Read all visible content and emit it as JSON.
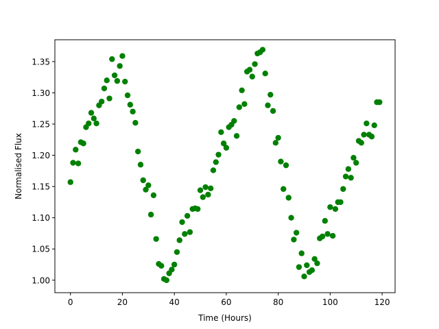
{
  "chart_data": {
    "type": "scatter",
    "title": "",
    "xlabel": "Time (Hours)",
    "ylabel": "Normalised Flux",
    "xlim": [
      -6,
      125
    ],
    "ylim": [
      0.98,
      1.385
    ],
    "x_ticks": [
      0,
      20,
      40,
      60,
      80,
      100,
      120
    ],
    "y_ticks": [
      1.0,
      1.05,
      1.1,
      1.15,
      1.2,
      1.25,
      1.3,
      1.35
    ],
    "grid": false,
    "legend": "none",
    "marker_color": "#008000",
    "series": [
      {
        "x": [
          0,
          1,
          2,
          3,
          4,
          5,
          6,
          7,
          8,
          9,
          10,
          11,
          12,
          13,
          14,
          15,
          16,
          17,
          18,
          19,
          20,
          21,
          22,
          23,
          24,
          25,
          26,
          27,
          28,
          29,
          30,
          31,
          32,
          33,
          34,
          35,
          36,
          37,
          38,
          39,
          40,
          41,
          42,
          43,
          44,
          45,
          46,
          47,
          48,
          49,
          50,
          51,
          52,
          53,
          54,
          55,
          56,
          57,
          58,
          59,
          60,
          61,
          62,
          63,
          64,
          65,
          66,
          67,
          68,
          69,
          70,
          71,
          72,
          73,
          74,
          75,
          76,
          77,
          78,
          79,
          80,
          81,
          82,
          83,
          84,
          85,
          86,
          87,
          88,
          89,
          90,
          91,
          92,
          93,
          94,
          95,
          96,
          97,
          98,
          99,
          100,
          101,
          102,
          103,
          104,
          105,
          106,
          107,
          108,
          109,
          110,
          111,
          112,
          113,
          114,
          115,
          116,
          117,
          118,
          119
        ],
        "y": [
          1.157,
          1.188,
          1.209,
          1.187,
          1.221,
          1.219,
          1.245,
          1.251,
          1.268,
          1.259,
          1.251,
          1.28,
          1.286,
          1.307,
          1.32,
          1.291,
          1.354,
          1.328,
          1.319,
          1.343,
          1.359,
          1.318,
          1.296,
          1.281,
          1.27,
          1.252,
          1.206,
          1.185,
          1.16,
          1.145,
          1.152,
          1.105,
          1.136,
          1.066,
          1.026,
          1.023,
          1.002,
          1.0,
          1.011,
          1.017,
          1.025,
          1.045,
          1.064,
          1.093,
          1.074,
          1.103,
          1.077,
          1.114,
          1.115,
          1.114,
          1.144,
          1.133,
          1.149,
          1.137,
          1.147,
          1.176,
          1.189,
          1.201,
          1.237,
          1.219,
          1.212,
          1.245,
          1.249,
          1.255,
          1.231,
          1.277,
          1.304,
          1.282,
          1.334,
          1.337,
          1.326,
          1.346,
          1.363,
          1.365,
          1.369,
          1.331,
          1.28,
          1.297,
          1.271,
          1.22,
          1.228,
          1.19,
          1.146,
          1.184,
          1.132,
          1.1,
          1.065,
          1.076,
          1.021,
          1.043,
          1.006,
          1.024,
          1.013,
          1.016,
          1.034,
          1.027,
          1.067,
          1.07,
          1.095,
          1.074,
          1.117,
          1.071,
          1.114,
          1.125,
          1.125,
          1.146,
          1.166,
          1.178,
          1.164,
          1.196,
          1.188,
          1.223,
          1.22,
          1.233,
          1.251,
          1.233,
          1.23,
          1.248,
          1.285,
          1.285
        ]
      }
    ]
  }
}
